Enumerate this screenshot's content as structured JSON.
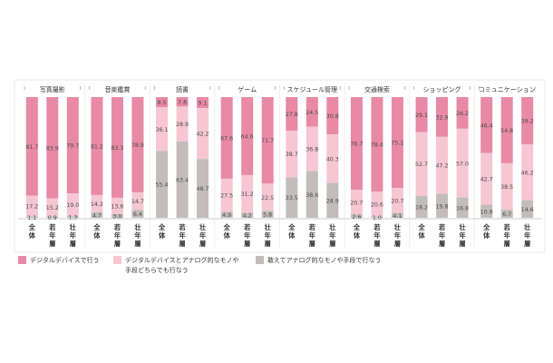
{
  "chart_data": {
    "type": "bar",
    "stacked": true,
    "orientation": "vertical",
    "ylim": [
      0,
      100
    ],
    "groups": [
      {
        "title": "写真撮影",
        "categories": [
          "全体",
          "若年層",
          "壮年層"
        ],
        "series_values": [
          [
            81.7,
            83.9,
            79.7
          ],
          [
            17.2,
            15.2,
            19.0
          ],
          [
            1.1,
            0.9,
            1.3
          ]
        ]
      },
      {
        "title": "音楽鑑賞",
        "categories": [
          "全体",
          "若年層",
          "壮年層"
        ],
        "series_values": [
          [
            81.2,
            83.3,
            78.9
          ],
          [
            14.2,
            13.6,
            14.7
          ],
          [
            4.7,
            3.0,
            6.4
          ]
        ]
      },
      {
        "title": "読書",
        "categories": [
          "全体",
          "若年層",
          "壮年層"
        ],
        "series_values": [
          [
            8.5,
            7.8,
            9.1
          ],
          [
            36.1,
            28.9,
            42.2
          ],
          [
            55.4,
            63.4,
            48.7
          ]
        ]
      },
      {
        "title": "ゲーム",
        "categories": [
          "全体",
          "若年層",
          "壮年層"
        ],
        "series_values": [
          [
            67.6,
            64.6,
            71.7
          ],
          [
            27.5,
            31.2,
            22.5
          ],
          [
            4.9,
            4.2,
            5.8
          ]
        ]
      },
      {
        "title": "スケジュール管理",
        "categories": [
          "全体",
          "若年層",
          "壮年層"
        ],
        "series_values": [
          [
            27.8,
            24.5,
            30.8
          ],
          [
            38.7,
            36.8,
            40.3
          ],
          [
            33.5,
            38.6,
            28.9
          ]
        ]
      },
      {
        "title": "交通検索",
        "categories": [
          "全体",
          "若年層",
          "壮年層"
        ],
        "series_values": [
          [
            76.7,
            78.4,
            75.1
          ],
          [
            20.7,
            20.6,
            20.7
          ],
          [
            2.6,
            1.0,
            4.1
          ]
        ]
      },
      {
        "title": "ショッピング",
        "categories": [
          "全体",
          "若年層",
          "壮年層"
        ],
        "series_values": [
          [
            29.1,
            32.9,
            26.2
          ],
          [
            52.7,
            47.2,
            57.0
          ],
          [
            18.2,
            19.8,
            16.8
          ]
        ]
      },
      {
        "title": "コミュニケーション",
        "categories": [
          "全体",
          "若年層",
          "壮年層"
        ],
        "series_values": [
          [
            46.4,
            54.8,
            39.2
          ],
          [
            42.7,
            38.5,
            46.2
          ],
          [
            10.9,
            6.7,
            14.6
          ]
        ]
      }
    ],
    "legend": [
      {
        "label": "デジタルデバイスで行う",
        "color": "#e889a6"
      },
      {
        "label": "デジタルデバイスとアナログ的なモノや手段どちらでも行なう",
        "color": "#f6c6d4"
      },
      {
        "label": "敢えてアナログ的なモノや手段で行なう",
        "color": "#c2bdbb"
      }
    ]
  }
}
